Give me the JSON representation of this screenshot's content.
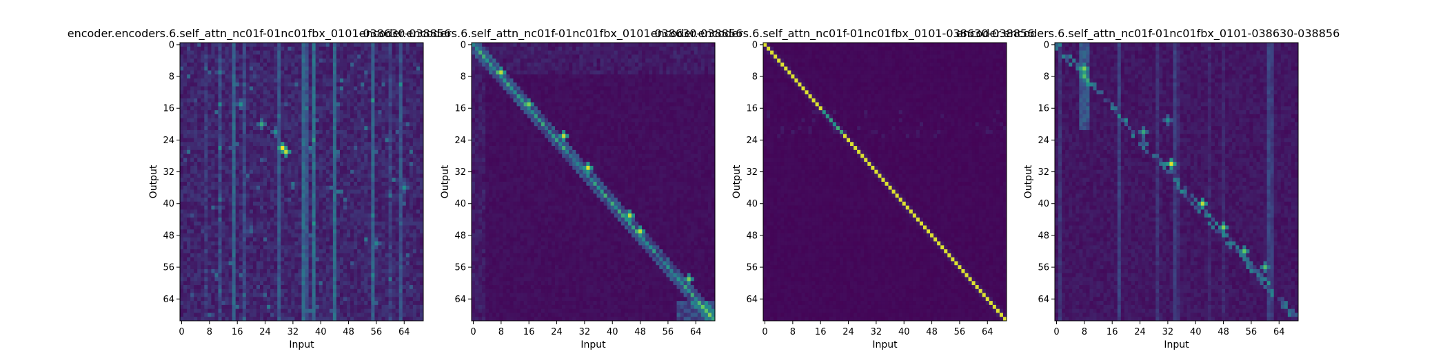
{
  "colormap": {
    "name": "viridis",
    "stops": [
      "#440154",
      "#3b528b",
      "#21918c",
      "#5ec962",
      "#fde725"
    ]
  },
  "chart_data": [
    {
      "type": "heatmap",
      "title": "encoder.encoders.6.self_attn_nc01f-01nc01fbx_0101-038630-038856",
      "xlabel": "Input",
      "ylabel": "Output",
      "x_ticks": [
        0,
        8,
        16,
        24,
        32,
        40,
        48,
        56,
        64
      ],
      "y_ticks": [
        0,
        8,
        16,
        24,
        32,
        40,
        48,
        56,
        64
      ],
      "size": [
        70,
        70
      ],
      "pattern": "diffuse",
      "hotspots": [
        [
          26,
          29,
          1.0
        ],
        [
          27,
          30,
          0.9
        ],
        [
          20,
          23,
          0.6
        ],
        [
          15,
          17,
          0.5
        ],
        [
          36,
          64,
          0.5
        ],
        [
          50,
          56,
          0.45
        ],
        [
          7,
          11,
          0.4
        ],
        [
          22,
          27,
          0.5
        ]
      ]
    },
    {
      "type": "heatmap",
      "title": "encoder.encoders.6.self_attn_nc01f-01nc01fbx_0101-038630-038856",
      "xlabel": "Input",
      "ylabel": "Output",
      "x_ticks": [
        0,
        8,
        16,
        24,
        32,
        40,
        48,
        56,
        64
      ],
      "y_ticks": [
        0,
        8,
        16,
        24,
        32,
        40,
        48,
        56,
        64
      ],
      "size": [
        70,
        70
      ],
      "pattern": "noisy-diagonal",
      "hotspots": [
        [
          7,
          8,
          0.9
        ],
        [
          15,
          16,
          0.8
        ],
        [
          23,
          26,
          0.9
        ],
        [
          31,
          33,
          0.95
        ],
        [
          43,
          45,
          0.9
        ],
        [
          47,
          48,
          0.9
        ],
        [
          59,
          62,
          0.8
        ]
      ]
    },
    {
      "type": "heatmap",
      "title": "encoder.encoders.6.self_attn_nc01f-01nc01fbx_0101-038630-038856",
      "xlabel": "Input",
      "ylabel": "Output",
      "x_ticks": [
        0,
        8,
        16,
        24,
        32,
        40,
        48,
        56,
        64
      ],
      "y_ticks": [
        0,
        8,
        16,
        24,
        32,
        40,
        48,
        56,
        64
      ],
      "size": [
        70,
        70
      ],
      "pattern": "sharp-diagonal",
      "hotspots": []
    },
    {
      "type": "heatmap",
      "title": "encoder.encoders.6.self_attn_nc01f-01nc01fbx_0101-038630-038856",
      "xlabel": "Input",
      "ylabel": "Output",
      "x_ticks": [
        0,
        8,
        16,
        24,
        32,
        40,
        48,
        56,
        64
      ],
      "y_ticks": [
        0,
        8,
        16,
        24,
        32,
        40,
        48,
        56,
        64
      ],
      "size": [
        70,
        70
      ],
      "pattern": "sparse-diagonal",
      "hotspots": [
        [
          6,
          8,
          0.8
        ],
        [
          8,
          8,
          0.7
        ],
        [
          22,
          25,
          0.6
        ],
        [
          30,
          33,
          0.95
        ],
        [
          40,
          42,
          0.9
        ],
        [
          46,
          48,
          0.8
        ],
        [
          52,
          54,
          0.75
        ],
        [
          56,
          60,
          0.7
        ],
        [
          19,
          32,
          0.5
        ]
      ]
    }
  ]
}
